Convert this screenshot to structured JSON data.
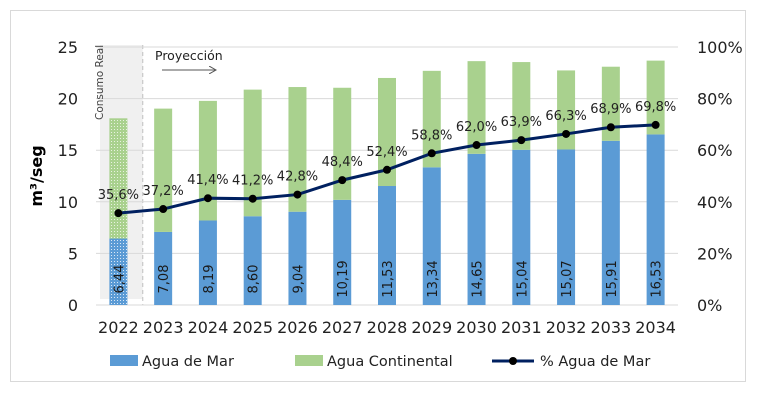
{
  "chart_data": {
    "type": "bar",
    "stacked": true,
    "categories": [
      "2022",
      "2023",
      "2024",
      "2025",
      "2026",
      "2027",
      "2028",
      "2029",
      "2030",
      "2031",
      "2032",
      "2033",
      "2034"
    ],
    "series": [
      {
        "name": "Agua de Mar",
        "type": "bar",
        "color": "#5b9bd5",
        "values": [
          6.44,
          7.08,
          8.19,
          8.6,
          9.04,
          10.19,
          11.53,
          13.34,
          14.65,
          15.04,
          15.07,
          15.91,
          16.53
        ],
        "labels": [
          "6,44",
          "7,08",
          "8,19",
          "8,60",
          "9,04",
          "10,19",
          "11,53",
          "13,34",
          "14,65",
          "15,04",
          "15,07",
          "15,91",
          "16,53"
        ]
      },
      {
        "name": "Agua Continental",
        "type": "bar",
        "color": "#a9d18e",
        "values": [
          11.65,
          11.95,
          11.59,
          12.27,
          12.08,
          10.86,
          10.47,
          9.35,
          8.98,
          8.5,
          7.66,
          7.18,
          7.15
        ]
      },
      {
        "name": "% Agua de Mar",
        "type": "line",
        "axis": "right",
        "color": "#002060",
        "values": [
          35.6,
          37.2,
          41.4,
          41.2,
          42.8,
          48.4,
          52.4,
          58.8,
          62.0,
          63.9,
          66.3,
          68.9,
          69.8
        ],
        "labels": [
          "35,6%",
          "37,2%",
          "41,4%",
          "41,2%",
          "42,8%",
          "48,4%",
          "52,4%",
          "58,8%",
          "62,0%",
          "63,9%",
          "66,3%",
          "68,9%",
          "69,8%"
        ]
      }
    ],
    "ylabel": "m³/seg",
    "ylim": [
      0,
      25
    ],
    "yticks": [
      "0",
      "5",
      "10",
      "15",
      "20",
      "25"
    ],
    "y2lim": [
      0,
      100
    ],
    "y2ticks": [
      "0%",
      "20%",
      "40%",
      "60%",
      "80%",
      "100%"
    ],
    "grid": true,
    "legend_position": "bottom",
    "annotations": {
      "real": "Consumo Real",
      "projection": "Proyección"
    }
  }
}
